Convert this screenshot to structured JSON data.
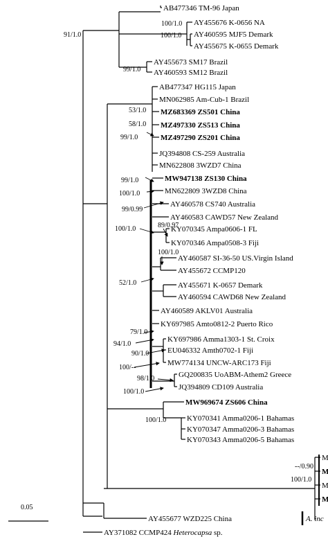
{
  "taxa": [
    {
      "id": "t1",
      "label": "AB477346 TM-96 Japan",
      "bold": false
    },
    {
      "id": "t2",
      "label": "AY455676 K-0656 NA",
      "bold": false
    },
    {
      "id": "t3",
      "label": "AY460595 MJF5 Demark",
      "bold": false
    },
    {
      "id": "t4",
      "label": "AY455675 K-0655 Demark",
      "bold": false
    },
    {
      "id": "t5",
      "label": "AY455673 SM17 Brazil",
      "bold": false
    },
    {
      "id": "t6",
      "label": "AY460593 SM12 Brazil",
      "bold": false
    },
    {
      "id": "t7",
      "label": "AB477347 HG115 Japan",
      "bold": false
    },
    {
      "id": "t8",
      "label": "MN062985 Am-Cub-1 Brazil",
      "bold": false
    },
    {
      "id": "t9",
      "label": "MZ683369 ZS501 China",
      "bold": true
    },
    {
      "id": "t10",
      "label": "MZ497330 ZS513 China",
      "bold": true
    },
    {
      "id": "t11",
      "label": "MZ497290 ZS201 China",
      "bold": true
    },
    {
      "id": "t12",
      "label": "JQ394808 CS-259 Australia",
      "bold": false
    },
    {
      "id": "t13",
      "label": "MN622808 3WZD7 China",
      "bold": false
    },
    {
      "id": "t14",
      "label": "MW947138 ZS130 China",
      "bold": true
    },
    {
      "id": "t15",
      "label": "MN622809 3WZD8 China",
      "bold": false
    },
    {
      "id": "t16",
      "label": "AY460578 CS740 Australia",
      "bold": false
    },
    {
      "id": "t17",
      "label": "AY460583 CAWD57 New Zealand",
      "bold": false
    },
    {
      "id": "t18",
      "label": "KY070345 Ampa0606-1 FL",
      "bold": false
    },
    {
      "id": "t19",
      "label": "KY070346 Ampa0508-3 Fiji",
      "bold": false
    },
    {
      "id": "t20",
      "label": "AY460587 SI-36-50 US.Virgin Island",
      "bold": false
    },
    {
      "id": "t21",
      "label": "AY455672 CCMP120",
      "bold": false
    },
    {
      "id": "t22",
      "label": "AY455671 K-0657 Demark",
      "bold": false
    },
    {
      "id": "t23",
      "label": "AY460594 CAWD68 New Zealand",
      "bold": false
    },
    {
      "id": "t24",
      "label": "AY460589 AKLV01 Australia",
      "bold": false
    },
    {
      "id": "t25",
      "label": "KY697985 Amto0812-2 Puerto Rico",
      "bold": false
    },
    {
      "id": "t26",
      "label": "KY697986 Amma1303-1 St. Croix",
      "bold": false
    },
    {
      "id": "t27",
      "label": "EU046332 Amth0702-1 Fiji",
      "bold": false
    },
    {
      "id": "t28",
      "label": "MW774134 UNCW-ARC173 Fiji",
      "bold": false
    },
    {
      "id": "t29",
      "label": "GQ200835 UoABM-Athem2 Greece",
      "bold": false
    },
    {
      "id": "t30",
      "label": "JQ394809 CD109 Australia",
      "bold": false
    },
    {
      "id": "t31",
      "label": "MW969674 ZS606 China",
      "bold": true
    },
    {
      "id": "t32",
      "label": "KY070341 Amma0206-1 Bahamas",
      "bold": false
    },
    {
      "id": "t33",
      "label": "KY070347 Amma0206-3 Bahamas",
      "bold": false
    },
    {
      "id": "t34",
      "label": "KY070343 Amma0206-5 Bahamas",
      "bold": false
    },
    {
      "id": "t35",
      "label": "AY455677 WZD225 China",
      "bold": false
    },
    {
      "id": "t36",
      "label": "AY371082 CCMP424",
      "italic_part": "Heterocapsa",
      "tail": "sp.",
      "bold": false
    }
  ],
  "support_values": {
    "s1": "91/1.0",
    "s2": "100/1.0",
    "s3": "100/1.0",
    "s4": "99/1.0",
    "s5": "53/1.0",
    "s6": "58/1.0",
    "s7": "99/1.0",
    "s8": "99/1.0",
    "s9": "100/1.0",
    "s10": "99/0.99",
    "s11": "100/1.0",
    "s12": "89/0.97",
    "s13": "100/1.0",
    "s14": "52/1.0",
    "s15": "79/1.0",
    "s16": "94/1.0",
    "s17": "90/1.0",
    "s18": "100/--",
    "s19": "98/1.0",
    "s20": "100/1.0",
    "s21": "100/1.0",
    "s22": "--/0.90",
    "s23": "100/1.0"
  },
  "cut_off": {
    "right_letters": [
      "M",
      "M",
      "M",
      "M"
    ],
    "species": "A. inc"
  },
  "scale_bar": {
    "label": "0.05"
  }
}
